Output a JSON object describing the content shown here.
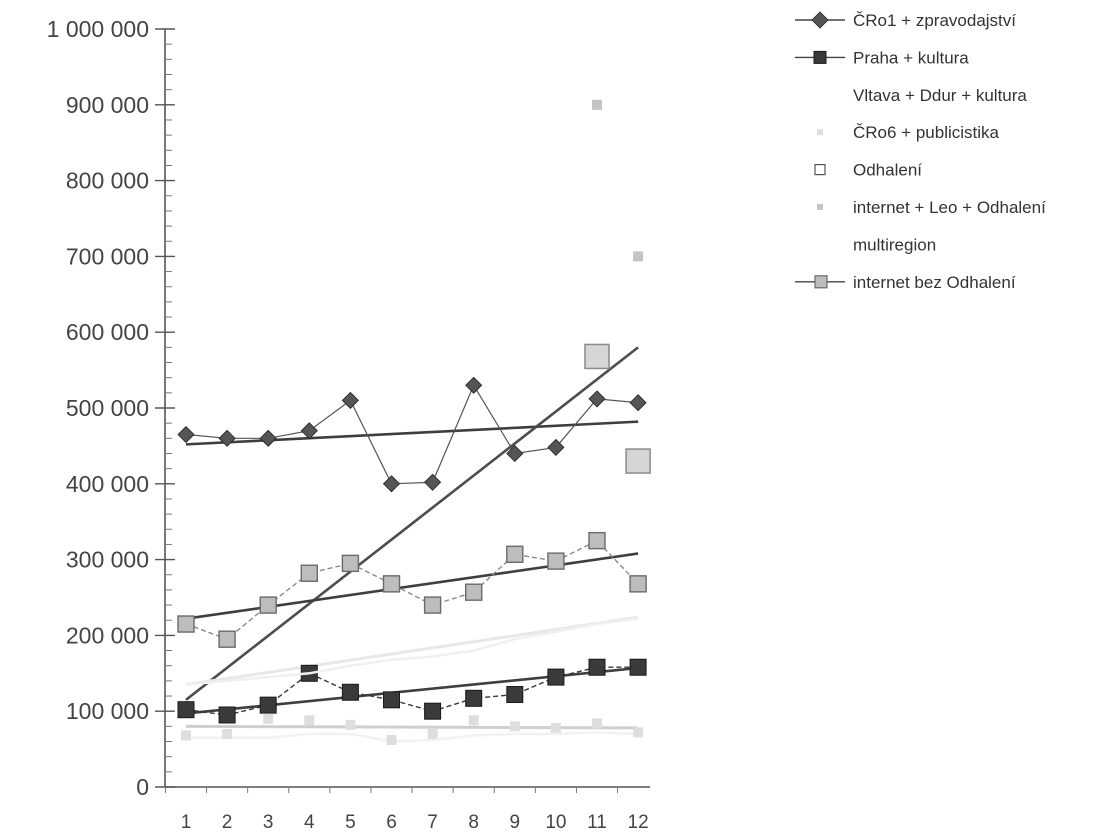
{
  "chart_data": {
    "type": "line",
    "x": [
      1,
      2,
      3,
      4,
      5,
      6,
      7,
      8,
      9,
      10,
      11,
      12
    ],
    "x_tick_labels": [
      "1",
      "2",
      "3",
      "4",
      "5",
      "6",
      "7",
      "8",
      "9",
      "10",
      "11",
      "12"
    ],
    "ylim": [
      0,
      1000000
    ],
    "y_ticks": [
      0,
      100000,
      200000,
      300000,
      400000,
      500000,
      600000,
      700000,
      800000,
      900000,
      1000000
    ],
    "y_tick_labels": [
      "0",
      "100 000",
      "200 000",
      "300 000",
      "400 000",
      "500 000",
      "600 000",
      "700 000",
      "800 000",
      "900 000",
      "1 000 000"
    ],
    "grid": false,
    "legend_position": "right",
    "series": [
      {
        "name": "ČRo1 + zpravodajství",
        "color": "#555555",
        "marker": "diamond",
        "values": [
          465000,
          460000,
          460000,
          470000,
          510000,
          400000,
          402000,
          530000,
          440000,
          448000,
          512000,
          507000
        ],
        "trend": [
          452000,
          482000
        ]
      },
      {
        "name": "Praha + kultura",
        "color": "#3a3a3a",
        "marker": "square",
        "values": [
          102000,
          95000,
          108000,
          150000,
          125000,
          115000,
          100000,
          117000,
          122000,
          145000,
          158000,
          158000
        ],
        "trend": [
          97000,
          157000
        ]
      },
      {
        "name": "Vltava + Ddur + kultura",
        "color": "#f2f2f2",
        "marker": "none",
        "values": [
          65000,
          65000,
          65000,
          70000,
          70000,
          60000,
          62000,
          68000,
          70000,
          70000,
          72000,
          70000
        ]
      },
      {
        "name": "ČRo6 + publicistika",
        "color": "#dedede",
        "marker": "small-square",
        "values": [
          68000,
          70000,
          90000,
          88000,
          82000,
          62000,
          70000,
          88000,
          80000,
          78000,
          84000,
          72000
        ],
        "trend": [
          80000,
          78000
        ]
      },
      {
        "name": "Odhalení",
        "color": "#b0b0b0",
        "marker": "square-outline",
        "values": [
          null,
          null,
          null,
          null,
          null,
          null,
          null,
          null,
          null,
          null,
          568000,
          430000
        ],
        "trend": [
          115000,
          580000
        ]
      },
      {
        "name": "internet + Leo + Odhalení",
        "color": "#c4c4c4",
        "marker": "small-square",
        "values": [
          null,
          null,
          null,
          null,
          null,
          null,
          null,
          null,
          null,
          null,
          900000,
          700000
        ]
      },
      {
        "name": "multiregion",
        "color": "#f0f0f0",
        "marker": "none",
        "values": [
          135000,
          140000,
          145000,
          150000,
          160000,
          168000,
          172000,
          180000,
          195000,
          205000,
          215000,
          222000
        ],
        "trend": [
          135000,
          224000
        ]
      },
      {
        "name": "internet bez Odhalení",
        "color": "#8a8a8a",
        "marker": "square-gray",
        "values": [
          215000,
          195000,
          240000,
          282000,
          295000,
          268000,
          240000,
          257000,
          307000,
          298000,
          325000,
          268000
        ],
        "trend": [
          222000,
          308000
        ]
      }
    ]
  }
}
